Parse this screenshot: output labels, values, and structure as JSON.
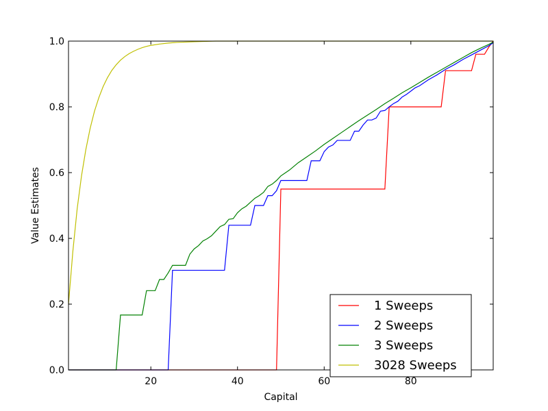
{
  "chart_data": {
    "type": "line",
    "title": "",
    "xlabel": "Capital",
    "ylabel": "Value Estimates",
    "xlim": [
      1,
      99
    ],
    "ylim": [
      0.0,
      1.0
    ],
    "xticks": [
      20,
      40,
      60,
      80
    ],
    "xtick_labels": [
      "20",
      "40",
      "60",
      "80"
    ],
    "yticks": [
      0.0,
      0.2,
      0.4,
      0.6,
      0.8,
      1.0
    ],
    "ytick_labels": [
      "0.0",
      "0.2",
      "0.4",
      "0.6",
      "0.8",
      "1.0"
    ],
    "grid": false,
    "legend_position": "lower-right",
    "series": [
      {
        "name": "1 Sweeps",
        "color": "#ff0000",
        "x": [
          1,
          49,
          50,
          74,
          75,
          87,
          88,
          94,
          95,
          97,
          98,
          99
        ],
        "y": [
          0.0,
          0.0,
          0.55,
          0.55,
          0.8,
          0.8,
          0.91,
          0.91,
          0.96,
          0.96,
          0.982,
          1.0
        ]
      },
      {
        "name": "2 Sweeps",
        "color": "#0000ff",
        "x": [
          1,
          24,
          25,
          37,
          38,
          43,
          44,
          46,
          47,
          48,
          49,
          50,
          56,
          57,
          59,
          60,
          61,
          62,
          63,
          64,
          66,
          67,
          68,
          69,
          70,
          71,
          72,
          73,
          74,
          75,
          76,
          77,
          78,
          79,
          80,
          81,
          82,
          84,
          86,
          88,
          90,
          92,
          94,
          96,
          98,
          99
        ],
        "y": [
          0.0,
          0.0,
          0.303,
          0.303,
          0.44,
          0.44,
          0.5,
          0.5,
          0.53,
          0.53,
          0.545,
          0.576,
          0.576,
          0.636,
          0.636,
          0.664,
          0.678,
          0.684,
          0.698,
          0.698,
          0.698,
          0.726,
          0.726,
          0.745,
          0.76,
          0.76,
          0.766,
          0.787,
          0.789,
          0.8,
          0.81,
          0.817,
          0.83,
          0.838,
          0.848,
          0.858,
          0.864,
          0.882,
          0.897,
          0.914,
          0.928,
          0.944,
          0.958,
          0.972,
          0.986,
          0.995
        ]
      },
      {
        "name": "3 Sweeps",
        "color": "#008000",
        "x": [
          1,
          12,
          13,
          18,
          19,
          21,
          22,
          23,
          24,
          25,
          28,
          29,
          30,
          31,
          32,
          33,
          34,
          35,
          36,
          37,
          38,
          39,
          40,
          41,
          42,
          43,
          44,
          45,
          46,
          47,
          48,
          49,
          50,
          52,
          54,
          56,
          58,
          60,
          62,
          64,
          66,
          68,
          70,
          72,
          74,
          76,
          78,
          80,
          82,
          84,
          86,
          88,
          90,
          92,
          94,
          96,
          98,
          99
        ],
        "y": [
          0.0,
          0.0,
          0.167,
          0.167,
          0.241,
          0.241,
          0.275,
          0.275,
          0.295,
          0.318,
          0.318,
          0.352,
          0.368,
          0.378,
          0.392,
          0.399,
          0.408,
          0.422,
          0.436,
          0.442,
          0.458,
          0.46,
          0.478,
          0.49,
          0.498,
          0.51,
          0.522,
          0.53,
          0.54,
          0.558,
          0.565,
          0.576,
          0.59,
          0.608,
          0.63,
          0.648,
          0.666,
          0.686,
          0.704,
          0.722,
          0.74,
          0.758,
          0.775,
          0.792,
          0.81,
          0.826,
          0.843,
          0.858,
          0.874,
          0.89,
          0.905,
          0.92,
          0.935,
          0.95,
          0.965,
          0.978,
          0.99,
          0.997
        ]
      },
      {
        "name": "3028 Sweeps",
        "color": "#bfbf00",
        "x": [
          1,
          2,
          3,
          4,
          5,
          6,
          7,
          8,
          9,
          10,
          11,
          12,
          13,
          14,
          15,
          16,
          17,
          18,
          19,
          20,
          22,
          24,
          26,
          28,
          30,
          32,
          35,
          40,
          50,
          60,
          70,
          80,
          90,
          99
        ],
        "y": [
          0.2,
          0.36,
          0.49,
          0.59,
          0.67,
          0.735,
          0.787,
          0.828,
          0.862,
          0.889,
          0.911,
          0.928,
          0.942,
          0.953,
          0.962,
          0.969,
          0.975,
          0.98,
          0.984,
          0.987,
          0.991,
          0.994,
          0.996,
          0.997,
          0.998,
          0.999,
          1.0,
          1.0,
          1.0,
          1.0,
          1.0,
          1.0,
          1.0,
          1.0
        ]
      }
    ]
  }
}
